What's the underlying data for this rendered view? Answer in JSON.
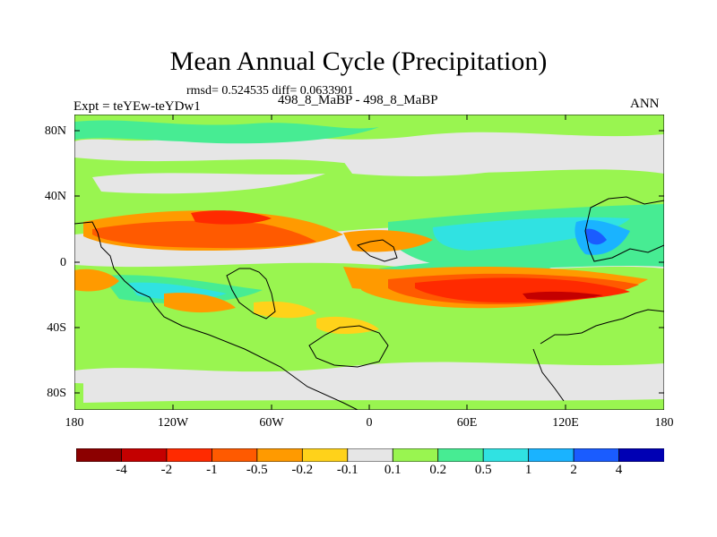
{
  "title": "Mean Annual Cycle (Precipitation)",
  "stats": "rmsd= 0.524535 diff= 0.0633901",
  "expt_label": "Expt = teYEw-teYDw1",
  "diff_label": "498_8_MaBP - 498_8_MaBP",
  "season": "ANN",
  "y_ticks": [
    "80N",
    "40N",
    "0",
    "40S",
    "80S"
  ],
  "x_ticks": [
    "180",
    "120W",
    "60W",
    "0",
    "60E",
    "120E",
    "180"
  ],
  "colorbar": {
    "colors": [
      "#8c0000",
      "#c40000",
      "#ff2a00",
      "#ff5a00",
      "#ff9a00",
      "#ffd21a",
      "#e6e6e6",
      "#99f550",
      "#47ec93",
      "#30e2e2",
      "#1ab3ff",
      "#1a5cff",
      "#0000b4"
    ],
    "labels": [
      "-4",
      "-2",
      "-1",
      "-0.5",
      "-0.2",
      "-0.1",
      "0.1",
      "0.2",
      "0.5",
      "1",
      "2",
      "4"
    ]
  }
}
